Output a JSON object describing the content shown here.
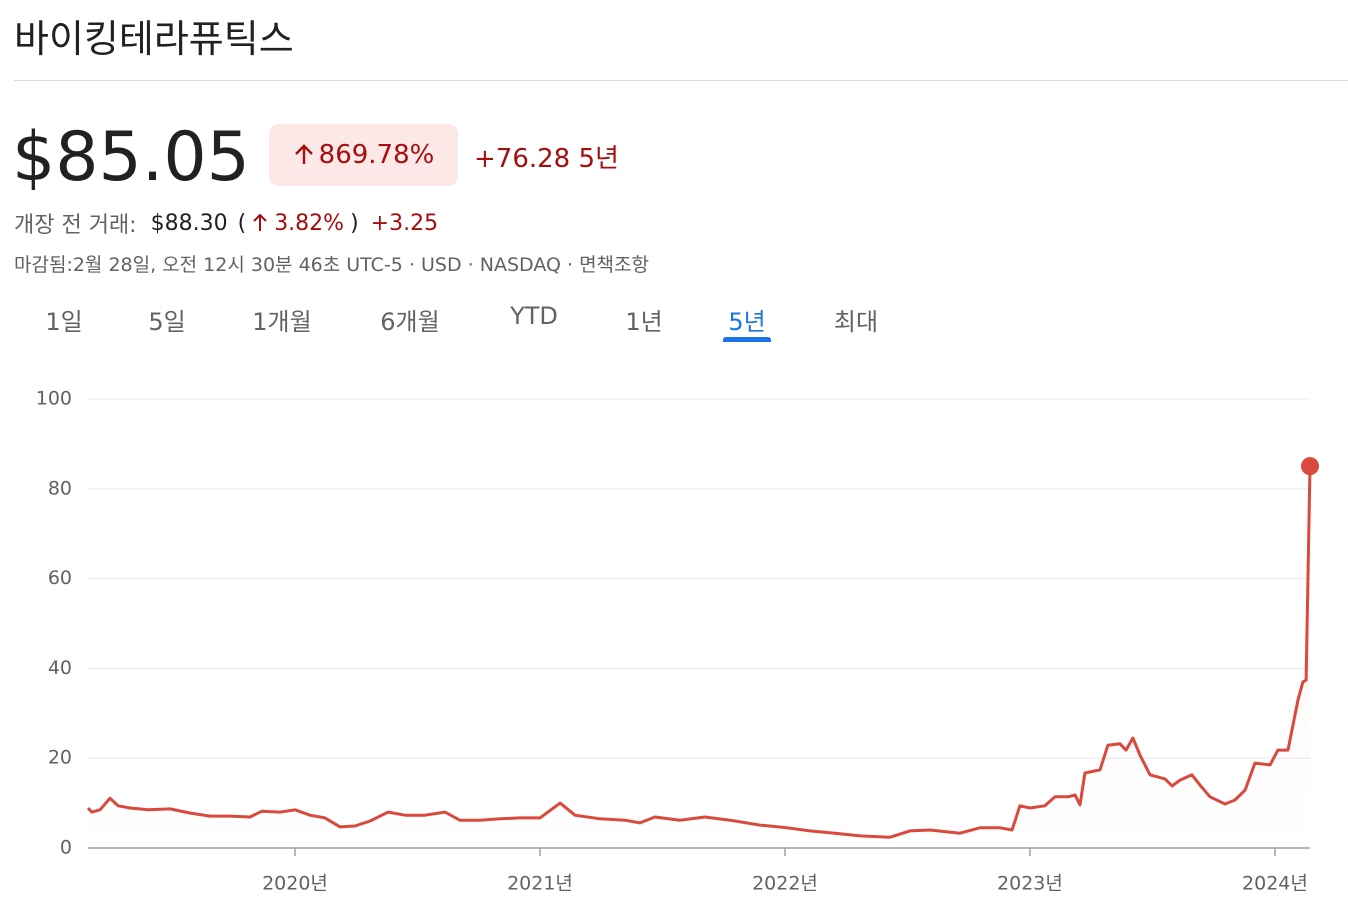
{
  "header": {
    "title": "바이킹테라퓨틱스"
  },
  "quote": {
    "price": "$85.05",
    "change_percent": "869.78%",
    "change": "+76.28 5년"
  },
  "premarket": {
    "label": "개장 전 거래:",
    "price": "$88.30",
    "change_percent": "3.82%",
    "change": "+3.25"
  },
  "info": {
    "closed": "마감됨:2월 28일, 오전 12시 30분 46초 UTC-5",
    "currency": "USD",
    "exchange": "NASDAQ",
    "disclaimer": "면책조항"
  },
  "tabs": {
    "items": [
      "1일",
      "5일",
      "1개월",
      "6개월",
      "YTD",
      "1년",
      "5년",
      "최대"
    ],
    "active": 6
  },
  "chart_data": {
    "type": "line",
    "color": "#d9493c",
    "grid": true,
    "x": [
      2019.155,
      2019.171,
      2019.204,
      2019.245,
      2019.278,
      2019.327,
      2019.4,
      2019.49,
      2019.571,
      2019.653,
      2019.735,
      2019.816,
      2019.865,
      2019.939,
      2020.0,
      2020.061,
      2020.122,
      2020.184,
      2020.245,
      2020.306,
      2020.38,
      2020.449,
      2020.531,
      2020.612,
      2020.673,
      2020.755,
      2020.837,
      2020.918,
      2021.0,
      2021.082,
      2021.143,
      2021.245,
      2021.347,
      2021.408,
      2021.469,
      2021.571,
      2021.673,
      2021.776,
      2021.898,
      2022.008,
      2022.102,
      2022.204,
      2022.306,
      2022.429,
      2022.51,
      2022.592,
      2022.714,
      2022.796,
      2022.878,
      2022.927,
      2022.959,
      2023.0,
      2023.061,
      2023.102,
      2023.155,
      2023.184,
      2023.204,
      2023.224,
      2023.286,
      2023.318,
      2023.367,
      2023.392,
      2023.42,
      2023.449,
      2023.49,
      2023.551,
      2023.58,
      2023.612,
      2023.661,
      2023.694,
      2023.735,
      2023.796,
      2023.837,
      2023.878,
      2023.918,
      2023.98,
      2024.012,
      2024.053,
      2024.094,
      2024.114,
      2024.127,
      2024.143
    ],
    "values": [
      8.9,
      8.0,
      8.5,
      11.1,
      9.4,
      8.9,
      8.5,
      8.7,
      7.8,
      7.1,
      7.1,
      6.9,
      8.2,
      8.0,
      8.5,
      7.3,
      6.7,
      4.7,
      4.9,
      6.0,
      8.0,
      7.3,
      7.3,
      8.0,
      6.2,
      6.2,
      6.5,
      6.7,
      6.7,
      10.0,
      7.3,
      6.5,
      6.2,
      5.6,
      6.9,
      6.2,
      6.9,
      6.2,
      5.1,
      4.5,
      3.8,
      3.3,
      2.7,
      2.4,
      3.8,
      4.0,
      3.3,
      4.5,
      4.5,
      4.0,
      9.4,
      8.9,
      9.4,
      11.4,
      11.4,
      11.8,
      9.6,
      16.7,
      17.4,
      22.9,
      23.2,
      21.8,
      24.5,
      20.7,
      16.3,
      15.4,
      13.8,
      15.1,
      16.3,
      14.0,
      11.4,
      9.8,
      10.7,
      12.9,
      18.9,
      18.5,
      21.8,
      21.8,
      33.0,
      37.0,
      37.4,
      85.05
    ],
    "xlim": [
      2019.155,
      2024.143
    ],
    "xticks": [
      {
        "value": 2020,
        "label": "2020년"
      },
      {
        "value": 2021,
        "label": "2021년"
      },
      {
        "value": 2022,
        "label": "2022년"
      },
      {
        "value": 2023,
        "label": "2023년"
      },
      {
        "value": 2024,
        "label": "2024년"
      }
    ],
    "ylim": [
      0,
      100
    ],
    "yticks": [
      0,
      20,
      40,
      60,
      80,
      100
    ]
  }
}
